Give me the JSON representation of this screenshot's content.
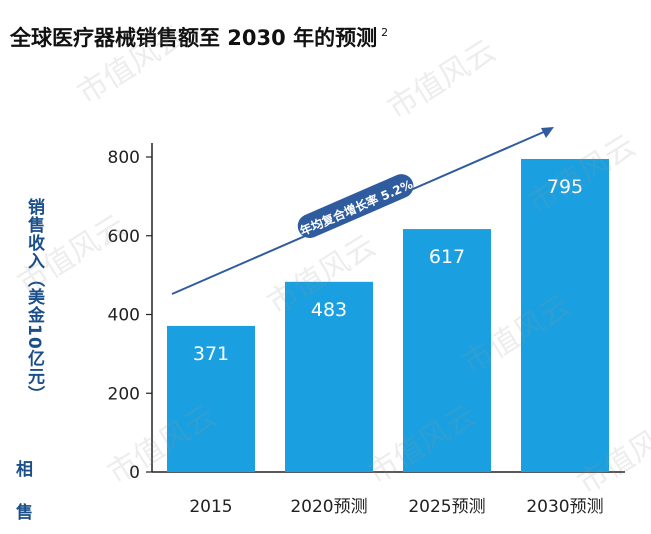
{
  "page": {
    "title": "全球医疗器械销售额至 2030 年的预测",
    "title_superscript": "2",
    "side_chars": [
      "相",
      "售"
    ],
    "watermark": "市值风云"
  },
  "chart_data": {
    "type": "bar",
    "title": "全球医疗器械销售额至 2030 年的预测",
    "ylabel": "销售收入（美金10亿元）",
    "xlabel": "",
    "categories": [
      "2015",
      "2020预测",
      "2025预测",
      "2030预测"
    ],
    "values": [
      371,
      483,
      617,
      795
    ],
    "ylim": [
      0,
      800
    ],
    "yticks": [
      0,
      200,
      400,
      600,
      800
    ],
    "bar_color": "#1aa0e0",
    "value_label_color": "#ffffff",
    "trend_arrow": {
      "label": "年均复合增长率 5.2%",
      "color": "#2e5c9e"
    },
    "grid": false
  }
}
